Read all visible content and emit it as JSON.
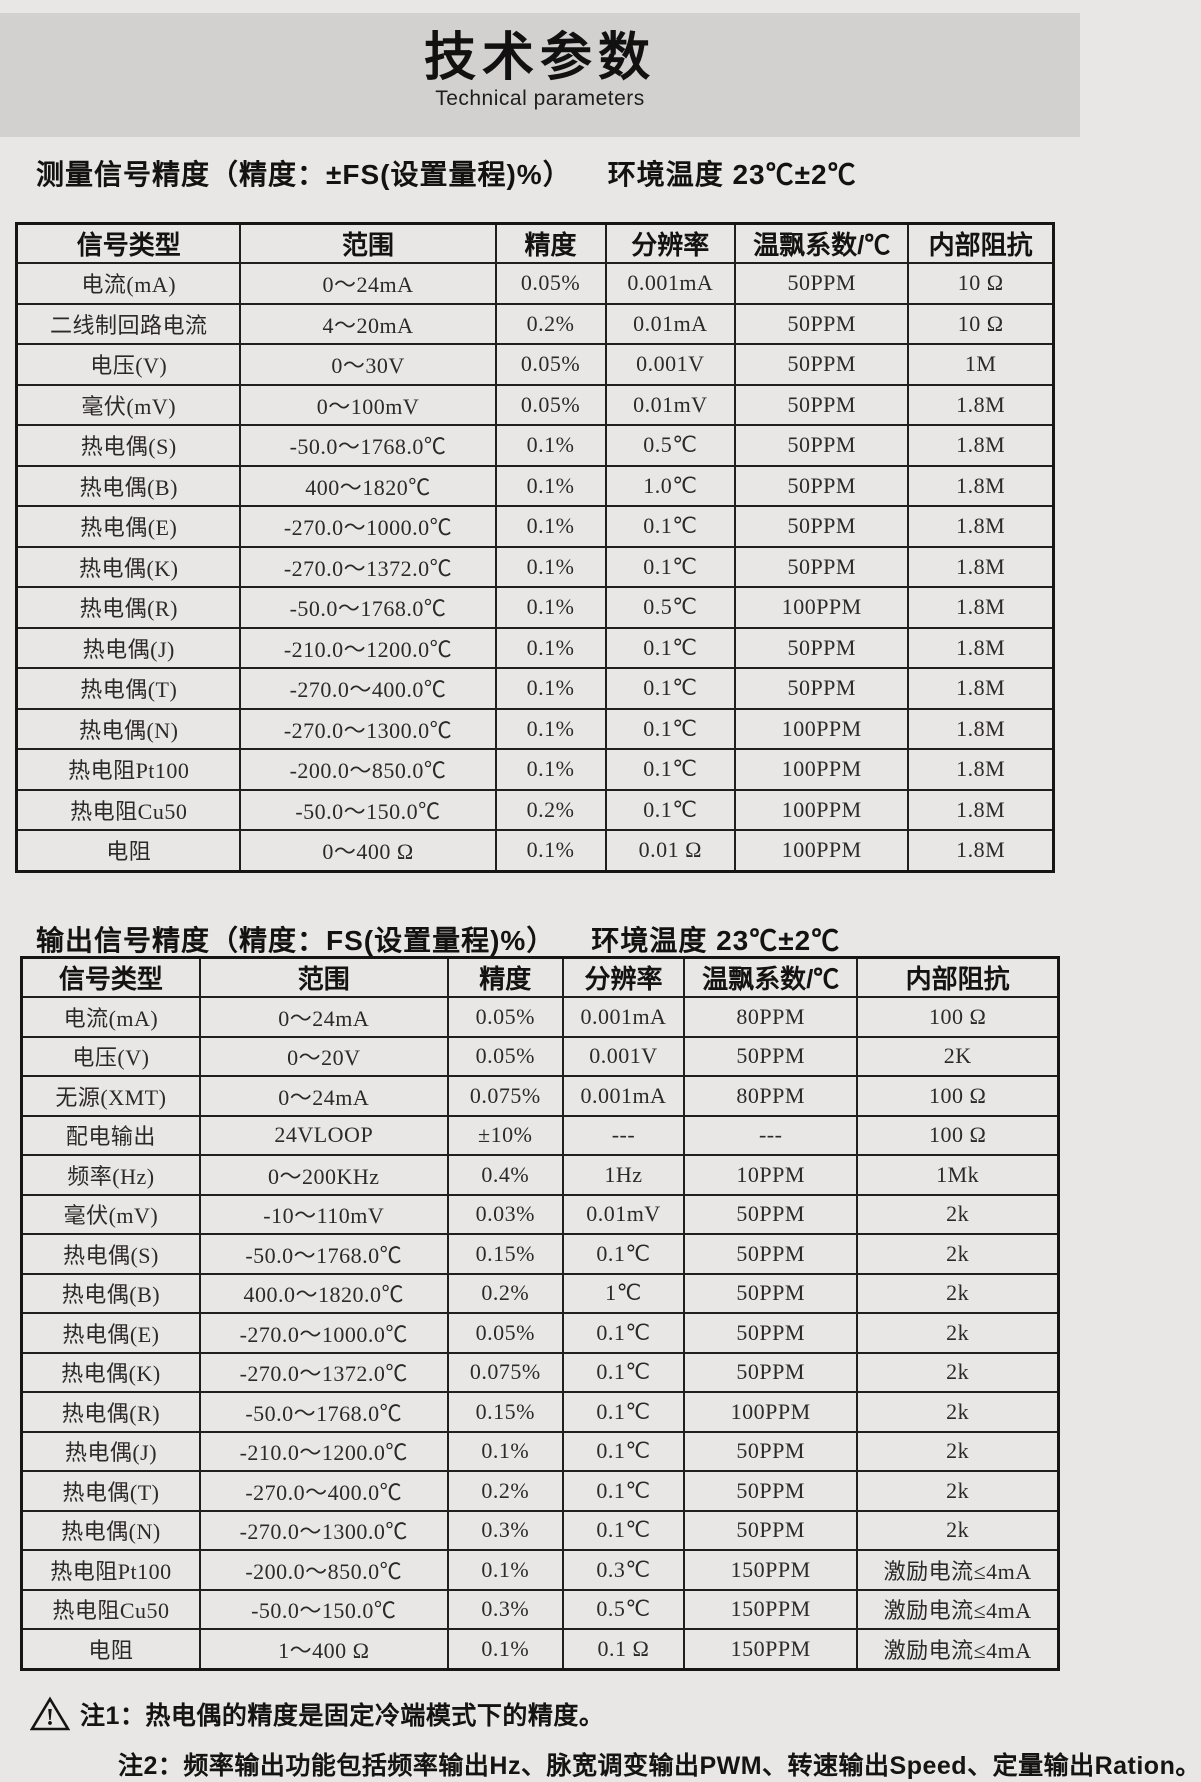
{
  "colors": {
    "page_bg": "#e9e7e5",
    "band_bg": "#d2d1d0",
    "border": "#201e1e",
    "text": "#2e2929"
  },
  "header": {
    "title": "技术参数",
    "subtitle": "Technical parameters"
  },
  "sections": {
    "measurement": {
      "title": "测量信号精度（精度：±FS(设置量程)%）",
      "env": "环境温度 23℃±2℃",
      "table": {
        "headers": [
          "信号类型",
          "范围",
          "精度",
          "分辨率",
          "温飘系数/℃",
          "内部阻抗"
        ],
        "rows": [
          [
            "电流(mA)",
            "0～24mA",
            "0.05%",
            "0.001mA",
            "50PPM",
            "10 Ω"
          ],
          [
            "二线制回路电流",
            "4～20mA",
            "0.2%",
            "0.01mA",
            "50PPM",
            "10 Ω"
          ],
          [
            "电压(V)",
            "0～30V",
            "0.05%",
            "0.001V",
            "50PPM",
            "1M"
          ],
          [
            "毫伏(mV)",
            "0～100mV",
            "0.05%",
            "0.01mV",
            "50PPM",
            "1.8M"
          ],
          [
            "热电偶(S)",
            "-50.0～1768.0℃",
            "0.1%",
            "0.5℃",
            "50PPM",
            "1.8M"
          ],
          [
            "热电偶(B)",
            "400～1820℃",
            "0.1%",
            "1.0℃",
            "50PPM",
            "1.8M"
          ],
          [
            "热电偶(E)",
            "-270.0～1000.0℃",
            "0.1%",
            "0.1℃",
            "50PPM",
            "1.8M"
          ],
          [
            "热电偶(K)",
            "-270.0～1372.0℃",
            "0.1%",
            "0.1℃",
            "50PPM",
            "1.8M"
          ],
          [
            "热电偶(R)",
            "-50.0～1768.0℃",
            "0.1%",
            "0.5℃",
            "100PPM",
            "1.8M"
          ],
          [
            "热电偶(J)",
            "-210.0～1200.0℃",
            "0.1%",
            "0.1℃",
            "50PPM",
            "1.8M"
          ],
          [
            "热电偶(T)",
            "-270.0～400.0℃",
            "0.1%",
            "0.1℃",
            "50PPM",
            "1.8M"
          ],
          [
            "热电偶(N)",
            "-270.0～1300.0℃",
            "0.1%",
            "0.1℃",
            "100PPM",
            "1.8M"
          ],
          [
            "热电阻Pt100",
            "-200.0～850.0℃",
            "0.1%",
            "0.1℃",
            "100PPM",
            "1.8M"
          ],
          [
            "热电阻Cu50",
            "-50.0～150.0℃",
            "0.2%",
            "0.1℃",
            "100PPM",
            "1.8M"
          ],
          [
            "电阻",
            "0～400 Ω",
            "0.1%",
            "0.01 Ω",
            "100PPM",
            "1.8M"
          ]
        ]
      }
    },
    "output": {
      "title": "输出信号精度（精度：FS(设置量程)%）",
      "env": "环境温度 23℃±2℃",
      "table": {
        "headers": [
          "信号类型",
          "范围",
          "精度",
          "分辨率",
          "温飘系数/℃",
          "内部阻抗"
        ],
        "rows": [
          [
            "电流(mA)",
            "0～24mA",
            "0.05%",
            "0.001mA",
            "80PPM",
            "100 Ω"
          ],
          [
            "电压(V)",
            "0～20V",
            "0.05%",
            "0.001V",
            "50PPM",
            "2K"
          ],
          [
            "无源(XMT)",
            "0～24mA",
            "0.075%",
            "0.001mA",
            "80PPM",
            "100 Ω"
          ],
          [
            "配电输出",
            "24VLOOP",
            "±10%",
            "---",
            "---",
            "100 Ω"
          ],
          [
            "频率(Hz)",
            "0～200KHz",
            "0.4%",
            "1Hz",
            "10PPM",
            "1Mk"
          ],
          [
            "毫伏(mV)",
            "-10～110mV",
            "0.03%",
            "0.01mV",
            "50PPM",
            "2k"
          ],
          [
            "热电偶(S)",
            "-50.0～1768.0℃",
            "0.15%",
            "0.1℃",
            "50PPM",
            "2k"
          ],
          [
            "热电偶(B)",
            "400.0～1820.0℃",
            "0.2%",
            "1℃",
            "50PPM",
            "2k"
          ],
          [
            "热电偶(E)",
            "-270.0～1000.0℃",
            "0.05%",
            "0.1℃",
            "50PPM",
            "2k"
          ],
          [
            "热电偶(K)",
            "-270.0～1372.0℃",
            "0.075%",
            "0.1℃",
            "50PPM",
            "2k"
          ],
          [
            "热电偶(R)",
            "-50.0～1768.0℃",
            "0.15%",
            "0.1℃",
            "100PPM",
            "2k"
          ],
          [
            "热电偶(J)",
            "-210.0～1200.0℃",
            "0.1%",
            "0.1℃",
            "50PPM",
            "2k"
          ],
          [
            "热电偶(T)",
            "-270.0～400.0℃",
            "0.2%",
            "0.1℃",
            "50PPM",
            "2k"
          ],
          [
            "热电偶(N)",
            "-270.0～1300.0℃",
            "0.3%",
            "0.1℃",
            "50PPM",
            "2k"
          ],
          [
            "热电阻Pt100",
            "-200.0～850.0℃",
            "0.1%",
            "0.3℃",
            "150PPM",
            "激励电流≤4mA"
          ],
          [
            "热电阻Cu50",
            "-50.0～150.0℃",
            "0.3%",
            "0.5℃",
            "150PPM",
            "激励电流≤4mA"
          ],
          [
            "电阻",
            "1～400 Ω",
            "0.1%",
            "0.1 Ω",
            "150PPM",
            "激励电流≤4mA"
          ]
        ]
      }
    }
  },
  "notes": {
    "icon_glyph": "!",
    "note1": "注1：热电偶的精度是固定冷端模式下的精度。",
    "note2": "注2：频率输出功能包括频率输出Hz、脉宽调变输出PWM、转速输出Speed、定量输出Ration。"
  }
}
